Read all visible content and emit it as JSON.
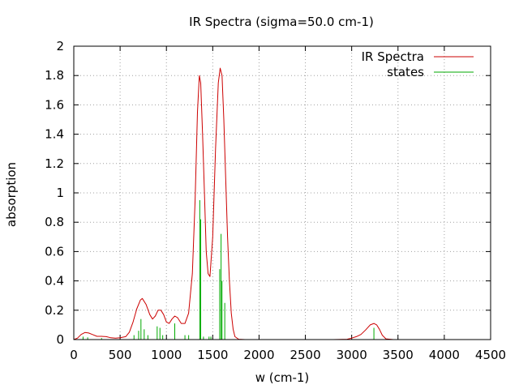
{
  "chart_data": {
    "type": "line",
    "title": "IR Spectra (sigma=50.0 cm-1)",
    "xlabel": "w (cm-1)",
    "ylabel": "absorption",
    "xlim": [
      0,
      4500
    ],
    "ylim": [
      0,
      2
    ],
    "xticks": [
      0,
      500,
      1000,
      1500,
      2000,
      2500,
      3000,
      3500,
      4000,
      4500
    ],
    "yticks": [
      0,
      0.2,
      0.4,
      0.6,
      0.8,
      1,
      1.2,
      1.4,
      1.6,
      1.8,
      2
    ],
    "ytick_labels": [
      "0",
      "0.2",
      "0.4",
      "0.6",
      "0.8",
      "1",
      "1.2",
      "1.4",
      "1.6",
      "1.8",
      "2"
    ],
    "grid": true,
    "legend_position": "top-right",
    "series": [
      {
        "name": "IR Spectra",
        "color": "#cc0000",
        "style": "line",
        "points": [
          [
            0,
            0.0
          ],
          [
            40,
            0.01
          ],
          [
            80,
            0.035
          ],
          [
            120,
            0.048
          ],
          [
            160,
            0.045
          ],
          [
            200,
            0.035
          ],
          [
            250,
            0.022
          ],
          [
            300,
            0.022
          ],
          [
            350,
            0.02
          ],
          [
            400,
            0.012
          ],
          [
            450,
            0.01
          ],
          [
            500,
            0.012
          ],
          [
            560,
            0.02
          ],
          [
            600,
            0.05
          ],
          [
            640,
            0.12
          ],
          [
            680,
            0.21
          ],
          [
            720,
            0.27
          ],
          [
            740,
            0.28
          ],
          [
            780,
            0.24
          ],
          [
            820,
            0.17
          ],
          [
            850,
            0.14
          ],
          [
            880,
            0.16
          ],
          [
            910,
            0.2
          ],
          [
            940,
            0.2
          ],
          [
            970,
            0.17
          ],
          [
            1000,
            0.12
          ],
          [
            1030,
            0.11
          ],
          [
            1060,
            0.14
          ],
          [
            1090,
            0.16
          ],
          [
            1120,
            0.15
          ],
          [
            1160,
            0.11
          ],
          [
            1200,
            0.11
          ],
          [
            1240,
            0.18
          ],
          [
            1280,
            0.45
          ],
          [
            1310,
            0.95
          ],
          [
            1335,
            1.55
          ],
          [
            1355,
            1.8
          ],
          [
            1370,
            1.75
          ],
          [
            1390,
            1.4
          ],
          [
            1410,
            1.0
          ],
          [
            1430,
            0.6
          ],
          [
            1450,
            0.45
          ],
          [
            1470,
            0.43
          ],
          [
            1500,
            0.7
          ],
          [
            1530,
            1.3
          ],
          [
            1560,
            1.75
          ],
          [
            1580,
            1.85
          ],
          [
            1600,
            1.8
          ],
          [
            1620,
            1.5
          ],
          [
            1640,
            1.1
          ],
          [
            1660,
            0.7
          ],
          [
            1680,
            0.4
          ],
          [
            1700,
            0.18
          ],
          [
            1720,
            0.07
          ],
          [
            1740,
            0.02
          ],
          [
            1780,
            0.002
          ],
          [
            1850,
            0.0
          ],
          [
            2800,
            0.0
          ],
          [
            2950,
            0.002
          ],
          [
            3000,
            0.01
          ],
          [
            3050,
            0.02
          ],
          [
            3100,
            0.035
          ],
          [
            3150,
            0.065
          ],
          [
            3200,
            0.1
          ],
          [
            3240,
            0.11
          ],
          [
            3270,
            0.1
          ],
          [
            3300,
            0.07
          ],
          [
            3330,
            0.03
          ],
          [
            3370,
            0.005
          ],
          [
            3450,
            0.0
          ],
          [
            4250,
            0.0
          ]
        ]
      },
      {
        "name": "states",
        "color": "#00aa00",
        "style": "impulses",
        "points": [
          [
            100,
            0.02
          ],
          [
            150,
            0.015
          ],
          [
            300,
            0.01
          ],
          [
            650,
            0.03
          ],
          [
            700,
            0.06
          ],
          [
            725,
            0.14
          ],
          [
            760,
            0.07
          ],
          [
            800,
            0.03
          ],
          [
            900,
            0.09
          ],
          [
            930,
            0.08
          ],
          [
            960,
            0.03
          ],
          [
            1090,
            0.11
          ],
          [
            1200,
            0.03
          ],
          [
            1240,
            0.03
          ],
          [
            1360,
            0.95
          ],
          [
            1370,
            0.82
          ],
          [
            1400,
            0.02
          ],
          [
            1460,
            0.02
          ],
          [
            1480,
            0.02
          ],
          [
            1575,
            0.48
          ],
          [
            1590,
            0.72
          ],
          [
            1600,
            0.4
          ],
          [
            1630,
            0.25
          ],
          [
            3240,
            0.08
          ]
        ]
      }
    ]
  }
}
